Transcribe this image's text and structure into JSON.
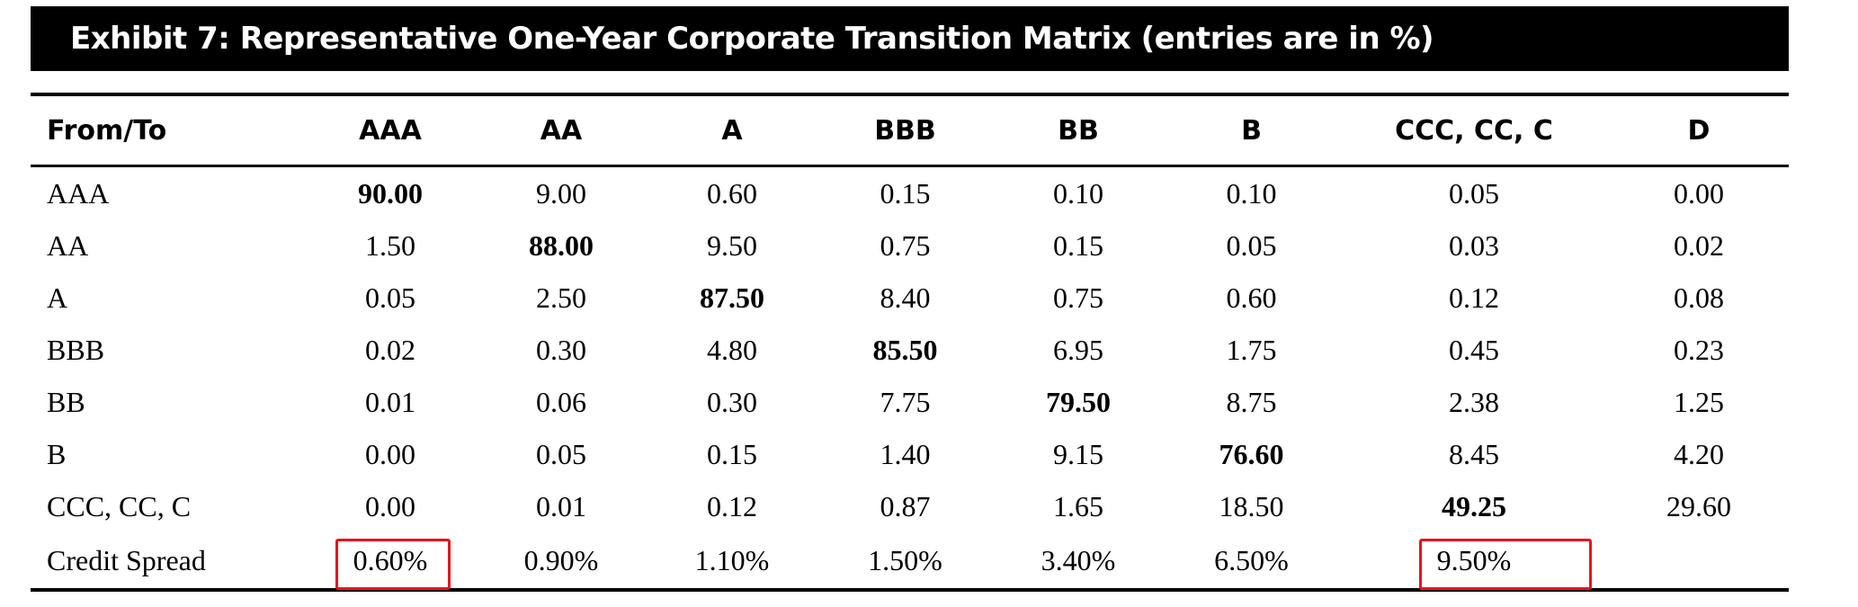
{
  "title": "Exhibit 7: Representative One-Year Corporate Transition Matrix (entries are in %)",
  "columns": [
    "From/To",
    "AAA",
    "AA",
    "A",
    "BBB",
    "BB",
    "B",
    "CCC, CC, C",
    "D"
  ],
  "rows": [
    {
      "label": "AAA",
      "values": [
        "90.00",
        "9.00",
        "0.60",
        "0.15",
        "0.10",
        "0.10",
        "0.05",
        "0.00"
      ],
      "diagonal": 0
    },
    {
      "label": "AA",
      "values": [
        "1.50",
        "88.00",
        "9.50",
        "0.75",
        "0.15",
        "0.05",
        "0.03",
        "0.02"
      ],
      "diagonal": 1
    },
    {
      "label": "A",
      "values": [
        "0.05",
        "2.50",
        "87.50",
        "8.40",
        "0.75",
        "0.60",
        "0.12",
        "0.08"
      ],
      "diagonal": 2
    },
    {
      "label": "BBB",
      "values": [
        "0.02",
        "0.30",
        "4.80",
        "85.50",
        "6.95",
        "1.75",
        "0.45",
        "0.23"
      ],
      "diagonal": 3
    },
    {
      "label": "BB",
      "values": [
        "0.01",
        "0.06",
        "0.30",
        "7.75",
        "79.50",
        "8.75",
        "2.38",
        "1.25"
      ],
      "diagonal": 4
    },
    {
      "label": "B",
      "values": [
        "0.00",
        "0.05",
        "0.15",
        "1.40",
        "9.15",
        "76.60",
        "8.45",
        "4.20"
      ],
      "diagonal": 5
    },
    {
      "label": "CCC, CC, C",
      "values": [
        "0.00",
        "0.01",
        "0.12",
        "0.87",
        "1.65",
        "18.50",
        "49.25",
        "29.60"
      ],
      "diagonal": 6
    }
  ],
  "spread_row": {
    "label": "Credit Spread",
    "values": [
      "0.60%",
      "0.90%",
      "1.10%",
      "1.50%",
      "3.40%",
      "6.50%",
      "9.50%"
    ],
    "highlighted": [
      "AAA",
      "CCC, CC, C"
    ],
    "highlight_color": "#e8141b"
  }
}
